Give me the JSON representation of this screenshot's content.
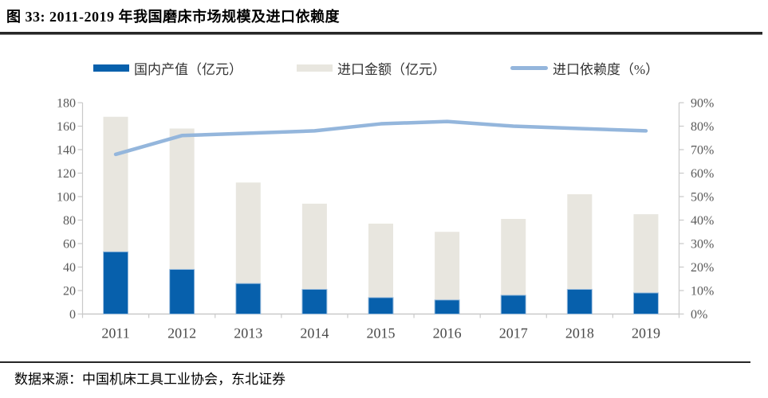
{
  "header": {
    "title": "图 33: 2011-2019 年我国磨床市场规模及进口依赖度"
  },
  "legend": [
    {
      "label": "国内产值（亿元）",
      "swatch": "bar",
      "color": "#0760AC"
    },
    {
      "label": "进口金额（亿元）",
      "swatch": "bar",
      "color": "#E8E6DF"
    },
    {
      "label": "进口依赖度（%）",
      "swatch": "line",
      "color": "#94B6DC"
    }
  ],
  "footer": {
    "source": "数据来源：中国机床工具工业协会，东北证券"
  },
  "colors": {
    "domestic_bar": "#0760AC",
    "domestic_bar_border": "#9DBEDE",
    "import_bar": "#E8E6DF",
    "dependency_line": "#94B6DC",
    "axis": "#C9C9C9",
    "tick_label": "#595959",
    "x_label": "#4A4A4A"
  },
  "chart_data": {
    "type": "bar",
    "subtype": "stacked-bars-with-line",
    "title": "图 33: 2011-2019 年我国磨床市场规模及进口依赖度",
    "categories": [
      "2011",
      "2012",
      "2013",
      "2014",
      "2015",
      "2016",
      "2017",
      "2018",
      "2019"
    ],
    "series": [
      {
        "name": "国内产值（亿元）",
        "type": "bar",
        "stack": true,
        "axis": "left",
        "color": "#0760AC",
        "values": [
          53,
          38,
          26,
          21,
          14,
          12,
          16,
          21,
          18
        ]
      },
      {
        "name": "进口金额（亿元）",
        "type": "bar",
        "stack": true,
        "axis": "left",
        "color": "#E8E6DF",
        "values": [
          115,
          120,
          86,
          73,
          63,
          58,
          65,
          81,
          67
        ]
      },
      {
        "name": "进口依赖度（%）",
        "type": "line",
        "axis": "right",
        "color": "#94B6DC",
        "values": [
          68,
          76,
          77,
          78,
          81,
          82,
          80,
          79,
          78
        ]
      }
    ],
    "left_axis": {
      "min": 0,
      "max": 180,
      "tick_labels": [
        "0",
        "20",
        "40",
        "60",
        "80",
        "100",
        "120",
        "140",
        "160",
        "180"
      ]
    },
    "right_axis": {
      "min": 0,
      "max": 90,
      "tick_labels": [
        "0%",
        "10%",
        "20%",
        "30%",
        "40%",
        "50%",
        "60%",
        "70%",
        "80%",
        "90%"
      ]
    },
    "grid": false,
    "legend_position": "top"
  }
}
